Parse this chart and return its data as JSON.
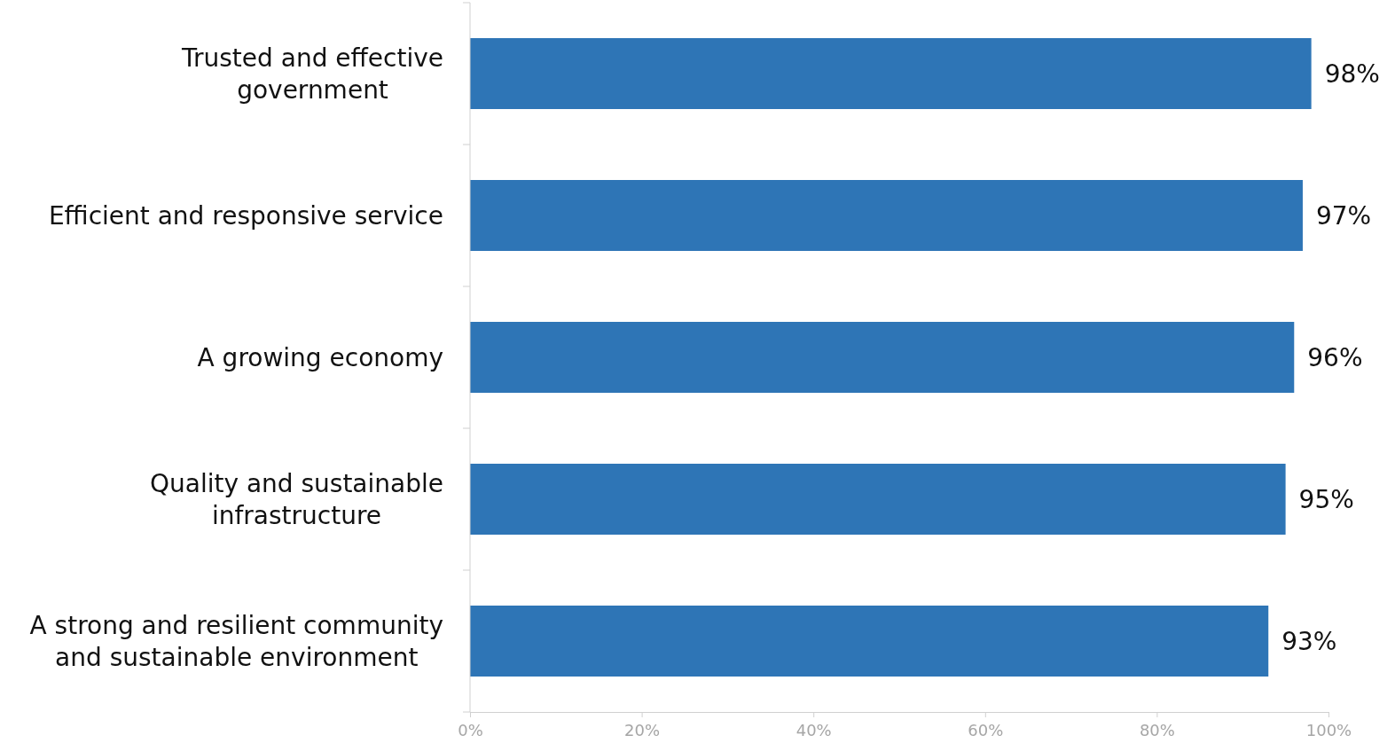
{
  "chart_data": {
    "type": "bar",
    "orientation": "horizontal",
    "categories": [
      "Trusted and effective government",
      "Efficient and responsive service",
      "A growing economy",
      "Quality and sustainable infrastructure",
      "A strong and resilient community and sustainable environment"
    ],
    "values": [
      98,
      97,
      96,
      95,
      93
    ],
    "value_labels": [
      "98%",
      "97%",
      "96%",
      "95%",
      "93%"
    ],
    "color": "#2e75b6",
    "xlim": [
      0,
      100
    ],
    "xticks": [
      {
        "value": 0,
        "label": "0%"
      },
      {
        "value": 20,
        "label": "20%"
      },
      {
        "value": 40,
        "label": "40%"
      },
      {
        "value": 60,
        "label": "60%"
      },
      {
        "value": 80,
        "label": "80%"
      },
      {
        "value": 100,
        "label": "100%"
      }
    ],
    "grid": false
  }
}
